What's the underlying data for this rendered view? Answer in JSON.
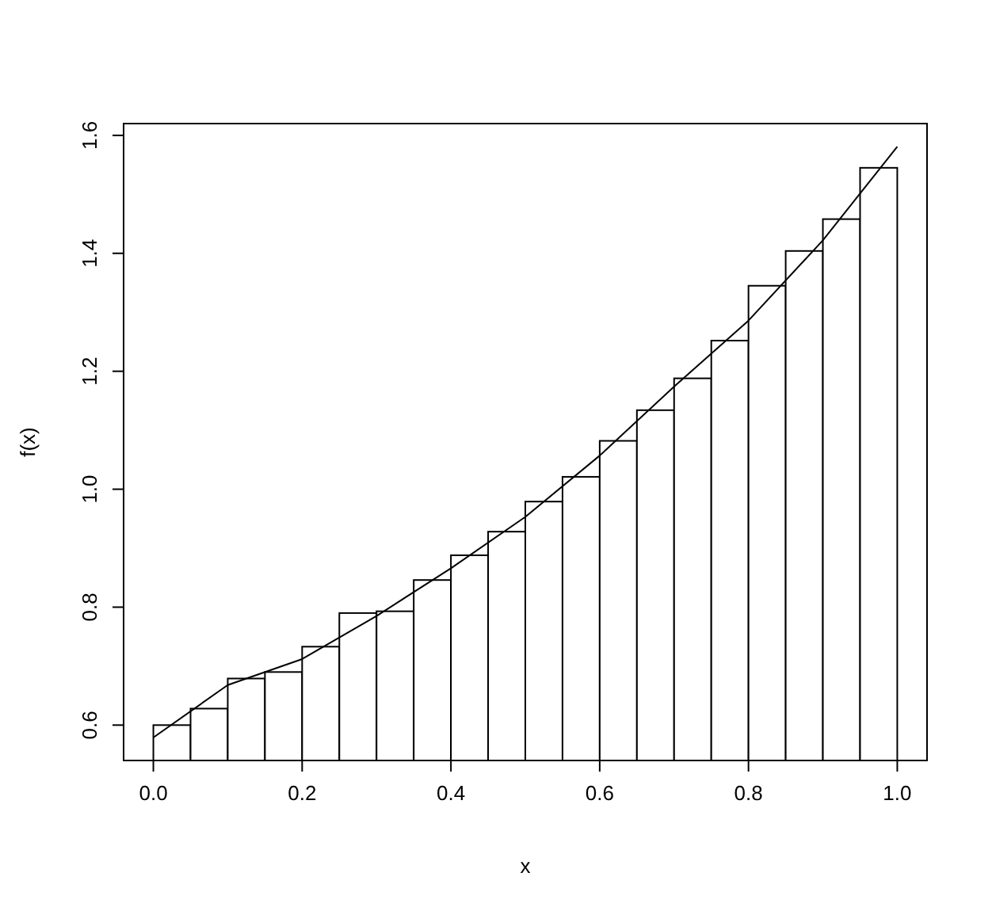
{
  "chart_data": {
    "type": "histogram",
    "xlabel": "x",
    "ylabel": "f(x)",
    "bins": [
      0,
      0.05,
      0.1,
      0.15,
      0.2,
      0.25,
      0.3,
      0.35,
      0.4,
      0.45,
      0.5,
      0.55,
      0.6,
      0.65,
      0.7,
      0.75,
      0.8,
      0.85,
      0.9,
      0.95,
      1
    ],
    "values": [
      0.6,
      0.628,
      0.679,
      0.69,
      0.733,
      0.79,
      0.793,
      0.846,
      0.888,
      0.928,
      0.979,
      1.021,
      1.082,
      1.134,
      1.188,
      1.252,
      1.345,
      1.404,
      1.458,
      1.545
    ],
    "color": "#ffffff",
    "series": [
      {
        "type": "line",
        "color": "#000000",
        "x": [
          0,
          0.1,
          0.2,
          0.3,
          0.4,
          0.5,
          0.6,
          0.7,
          0.8,
          0.9,
          1
        ],
        "values": [
          0.579,
          0.668,
          0.712,
          0.785,
          0.866,
          0.953,
          1.057,
          1.174,
          1.286,
          1.422,
          1.581
        ]
      }
    ],
    "xlim": [
      -0.04,
      1.04
    ],
    "ylim": [
      0.54,
      1.62
    ],
    "xticks": [
      {
        "value": 0,
        "label": "0.0"
      },
      0.2,
      0.4,
      0.6,
      0.8,
      {
        "value": 1,
        "label": "1.0"
      }
    ],
    "yticks": [
      0.6,
      0.8,
      {
        "value": 1,
        "label": "1.0"
      },
      1.2,
      1.4,
      1.6
    ]
  }
}
